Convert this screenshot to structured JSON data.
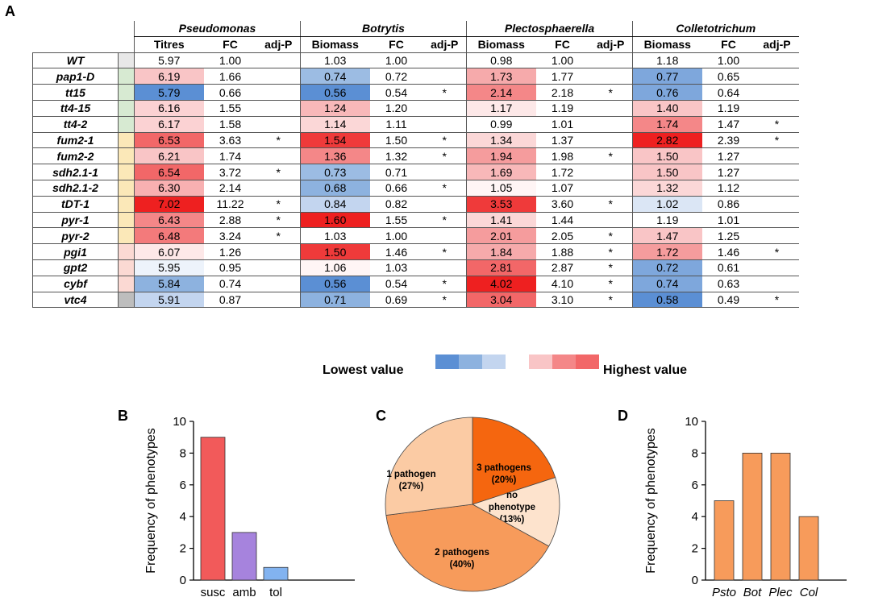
{
  "panels": {
    "a": "A",
    "b": "B",
    "c": "C",
    "d": "D"
  },
  "table": {
    "pathogens": [
      "Pseudomonas",
      "Botrytis",
      "Plectosphaerella",
      "Colletotrichum"
    ],
    "subheaders": [
      "Titres",
      "FC",
      "adj-P",
      "Biomass",
      "FC",
      "adj-P",
      "Biomass",
      "FC",
      "adj-P",
      "Biomass",
      "FC",
      "adj-P"
    ],
    "rows": [
      {
        "gene": "WT",
        "group": "#e8e8e8",
        "cells": [
          "5.97",
          "1.00",
          "",
          "1.03",
          "1.00",
          "",
          "0.98",
          "1.00",
          "",
          "1.18",
          "1.00",
          ""
        ],
        "colors": [
          "#ffffff",
          "#ffffff",
          "#ffffff",
          "#ffffff"
        ]
      },
      {
        "gene": "pap1-D",
        "group": "#d7ead2",
        "cells": [
          "6.19",
          "1.66",
          "",
          "0.74",
          "0.72",
          "",
          "1.73",
          "1.77",
          "",
          "0.77",
          "0.65",
          ""
        ],
        "colors": [
          "#f9c5c6",
          "#9cbce3",
          "#f6aaab",
          "#7ea7dc"
        ]
      },
      {
        "gene": "tt15",
        "group": "#d7ead2",
        "cells": [
          "5.79",
          "0.66",
          "",
          "0.56",
          "0.54",
          "*",
          "2.14",
          "2.18",
          "*",
          "0.76",
          "0.64",
          ""
        ],
        "colors": [
          "#5b8fd4",
          "#5b8fd4",
          "#f48788",
          "#7ea7dc"
        ]
      },
      {
        "gene": "tt4-15",
        "group": "#d7ead2",
        "cells": [
          "6.16",
          "1.55",
          "",
          "1.24",
          "1.20",
          "",
          "1.17",
          "1.19",
          "",
          "1.40",
          "1.19",
          ""
        ],
        "colors": [
          "#fbd2d3",
          "#f8b8b9",
          "#fde8e8",
          "#f9c5c6"
        ]
      },
      {
        "gene": "tt4-2",
        "group": "#d7ead2",
        "cells": [
          "6.17",
          "1.58",
          "",
          "1.14",
          "1.11",
          "",
          "0.99",
          "1.01",
          "",
          "1.74",
          "1.47",
          "*"
        ],
        "colors": [
          "#fbd2d3",
          "#fbd7d7",
          "#ffffff",
          "#f48788"
        ]
      },
      {
        "gene": "fum2-1",
        "group": "#fbe8b8",
        "cells": [
          "6.53",
          "3.63",
          "*",
          "1.54",
          "1.50",
          "*",
          "1.34",
          "1.37",
          "",
          "2.82",
          "2.39",
          "*"
        ],
        "colors": [
          "#f26768",
          "#ef3a3a",
          "#fbd7d7",
          "#ee2020"
        ]
      },
      {
        "gene": "fum2-2",
        "group": "#fbe8b8",
        "cells": [
          "6.21",
          "1.74",
          "",
          "1.36",
          "1.32",
          "*",
          "1.94",
          "1.98",
          "*",
          "1.50",
          "1.27",
          ""
        ],
        "colors": [
          "#f9c5c6",
          "#f48788",
          "#f59c9d",
          "#f9c5c6"
        ]
      },
      {
        "gene": "sdh2.1-1",
        "group": "#fbe8b8",
        "cells": [
          "6.54",
          "3.72",
          "*",
          "0.73",
          "0.71",
          "",
          "1.69",
          "1.72",
          "",
          "1.50",
          "1.27",
          ""
        ],
        "colors": [
          "#f26768",
          "#9cbce3",
          "#f8b8b9",
          "#f9c5c6"
        ]
      },
      {
        "gene": "sdh2.1-2",
        "group": "#fbe8b8",
        "cells": [
          "6.30",
          "2.14",
          "",
          "0.68",
          "0.66",
          "*",
          "1.05",
          "1.07",
          "",
          "1.32",
          "1.12",
          ""
        ],
        "colors": [
          "#f8b0b1",
          "#8db2df",
          "#fff5f5",
          "#fbd7d7"
        ]
      },
      {
        "gene": "tDT-1",
        "group": "#fbe8b8",
        "cells": [
          "7.02",
          "11.22",
          "*",
          "0.84",
          "0.82",
          "",
          "3.53",
          "3.60",
          "*",
          "1.02",
          "0.86",
          ""
        ],
        "colors": [
          "#ee2020",
          "#c3d5ef",
          "#ef3a3a",
          "#dbe6f5"
        ]
      },
      {
        "gene": "pyr-1",
        "group": "#fbe8b8",
        "cells": [
          "6.43",
          "2.88",
          "*",
          "1.60",
          "1.55",
          "*",
          "1.41",
          "1.44",
          "",
          "1.19",
          "1.01",
          ""
        ],
        "colors": [
          "#f48788",
          "#ee2020",
          "#fbd7d7",
          "#ffffff"
        ]
      },
      {
        "gene": "pyr-2",
        "group": "#fbe8b8",
        "cells": [
          "6.48",
          "3.24",
          "*",
          "1.03",
          "1.00",
          "",
          "2.01",
          "2.05",
          "*",
          "1.47",
          "1.25",
          ""
        ],
        "colors": [
          "#f37a7b",
          "#ffffff",
          "#f59c9d",
          "#f9c5c6"
        ]
      },
      {
        "gene": "pgi1",
        "group": "#fbd9d3",
        "cells": [
          "6.07",
          "1.26",
          "",
          "1.50",
          "1.46",
          "*",
          "1.84",
          "1.88",
          "*",
          "1.72",
          "1.46",
          "*"
        ],
        "colors": [
          "#fde8e8",
          "#ef3a3a",
          "#f6aaab",
          "#f59c9d"
        ]
      },
      {
        "gene": "gpt2",
        "group": "#fbd9d3",
        "cells": [
          "5.95",
          "0.95",
          "",
          "1.06",
          "1.03",
          "",
          "2.81",
          "2.87",
          "*",
          "0.72",
          "0.61",
          ""
        ],
        "colors": [
          "#edf3fb",
          "#fff5f5",
          "#f26768",
          "#7ea7dc"
        ]
      },
      {
        "gene": "cybf",
        "group": "#fbd9d3",
        "cells": [
          "5.84",
          "0.74",
          "",
          "0.56",
          "0.54",
          "*",
          "4.02",
          "4.10",
          "*",
          "0.74",
          "0.63",
          ""
        ],
        "colors": [
          "#8db2df",
          "#5b8fd4",
          "#ee2020",
          "#7ea7dc"
        ]
      },
      {
        "gene": "vtc4",
        "group": "#bdbdbd",
        "cells": [
          "5.91",
          "0.87",
          "",
          "0.71",
          "0.69",
          "*",
          "3.04",
          "3.10",
          "*",
          "0.58",
          "0.49",
          "*"
        ],
        "colors": [
          "#c3d5ef",
          "#8db2df",
          "#f26768",
          "#5b8fd4"
        ]
      }
    ]
  },
  "legend": {
    "low": "Lowest value",
    "high": "Highest value",
    "colors": [
      "#5b8fd4",
      "#8db2df",
      "#c3d5ef",
      "#ffffff",
      "#f9c5c6",
      "#f48788",
      "#f26768"
    ]
  },
  "chart_data": [
    {
      "type": "bar",
      "panel": "B",
      "categories": [
        "susc",
        "amb",
        "tol"
      ],
      "values": [
        9,
        3,
        0.8
      ],
      "colors": [
        "#f25a5a",
        "#a683dd",
        "#82b3f0"
      ],
      "ylabel": "Frequency of phenotypes",
      "ylim": [
        0,
        10
      ],
      "yticks": [
        0,
        2,
        4,
        6,
        8,
        10
      ]
    },
    {
      "type": "pie",
      "panel": "C",
      "labels": [
        "3 pathogens",
        "no phenotype",
        "2 pathogens",
        "1 pathogen"
      ],
      "pct_labels": [
        "(20%)",
        "(13%)",
        "(40%)",
        "(27%)"
      ],
      "values": [
        20,
        13,
        40,
        27
      ],
      "colors": [
        "#f5660f",
        "#fde3cd",
        "#f79b5b",
        "#fbcba4"
      ]
    },
    {
      "type": "bar",
      "panel": "D",
      "categories": [
        "Psto",
        "Bot",
        "Plec",
        "Col"
      ],
      "values": [
        5,
        8,
        8,
        4
      ],
      "color": "#f79b5b",
      "ylabel": "Frequency of phenotypes",
      "ylim": [
        0,
        10
      ],
      "yticks": [
        0,
        2,
        4,
        6,
        8,
        10
      ]
    }
  ]
}
